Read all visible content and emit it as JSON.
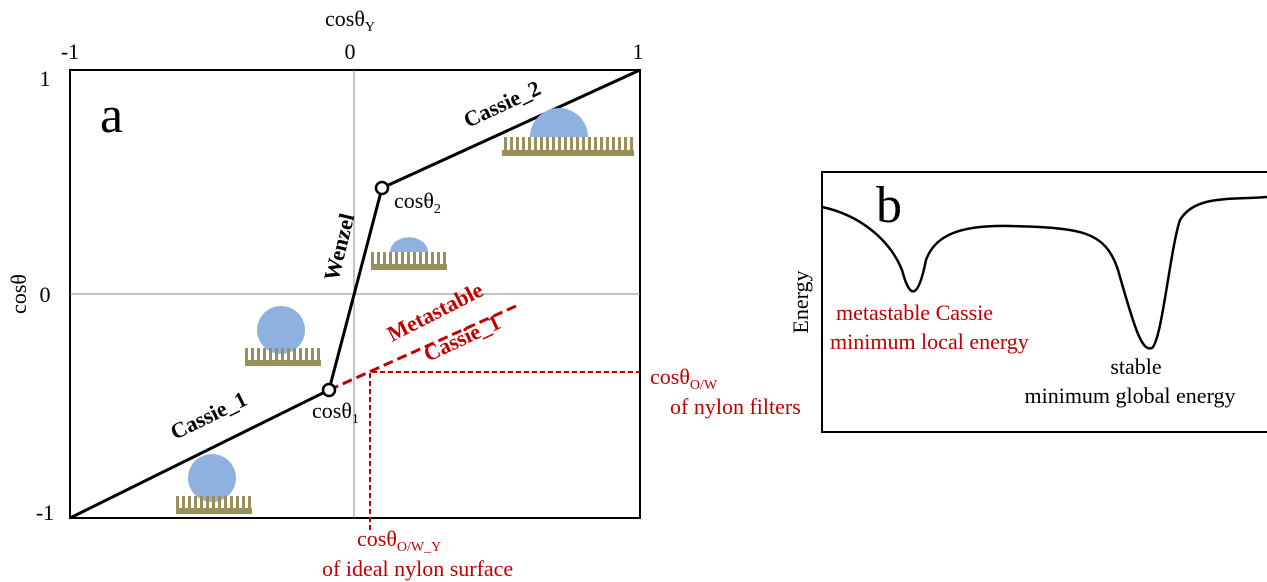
{
  "panel_a": {
    "label": "a",
    "top_axis": {
      "title": {
        "main": "cosθ",
        "sub": "Y"
      },
      "ticks": [
        "-1",
        "0",
        "1"
      ]
    },
    "left_axis": {
      "title": "cosθ",
      "ticks": [
        "1",
        "0",
        "-1"
      ]
    },
    "segments": {
      "cassie_1": "Cassie_1",
      "wenzel": "Wenzel",
      "cassie_2": "Cassie_2"
    },
    "metastable": {
      "line1": "Metastable",
      "line2": "Cassie_1"
    },
    "points": {
      "p1": {
        "main": "cosθ",
        "sub": "1"
      },
      "p2": {
        "main": "cosθ",
        "sub": "2"
      }
    },
    "filters": {
      "main": "cosθ",
      "sub": "O/W",
      "line2": "of nylon filters"
    },
    "ideal": {
      "main": "cosθ",
      "sub": "O/W_Y",
      "line2": "of ideal nylon surface"
    }
  },
  "panel_b": {
    "label": "b",
    "y_title": "Energy",
    "local": {
      "line1": "metastable Cassie",
      "line2": "minimum local energy"
    },
    "global": {
      "line1": "stable",
      "line2": "minimum global energy"
    }
  }
}
